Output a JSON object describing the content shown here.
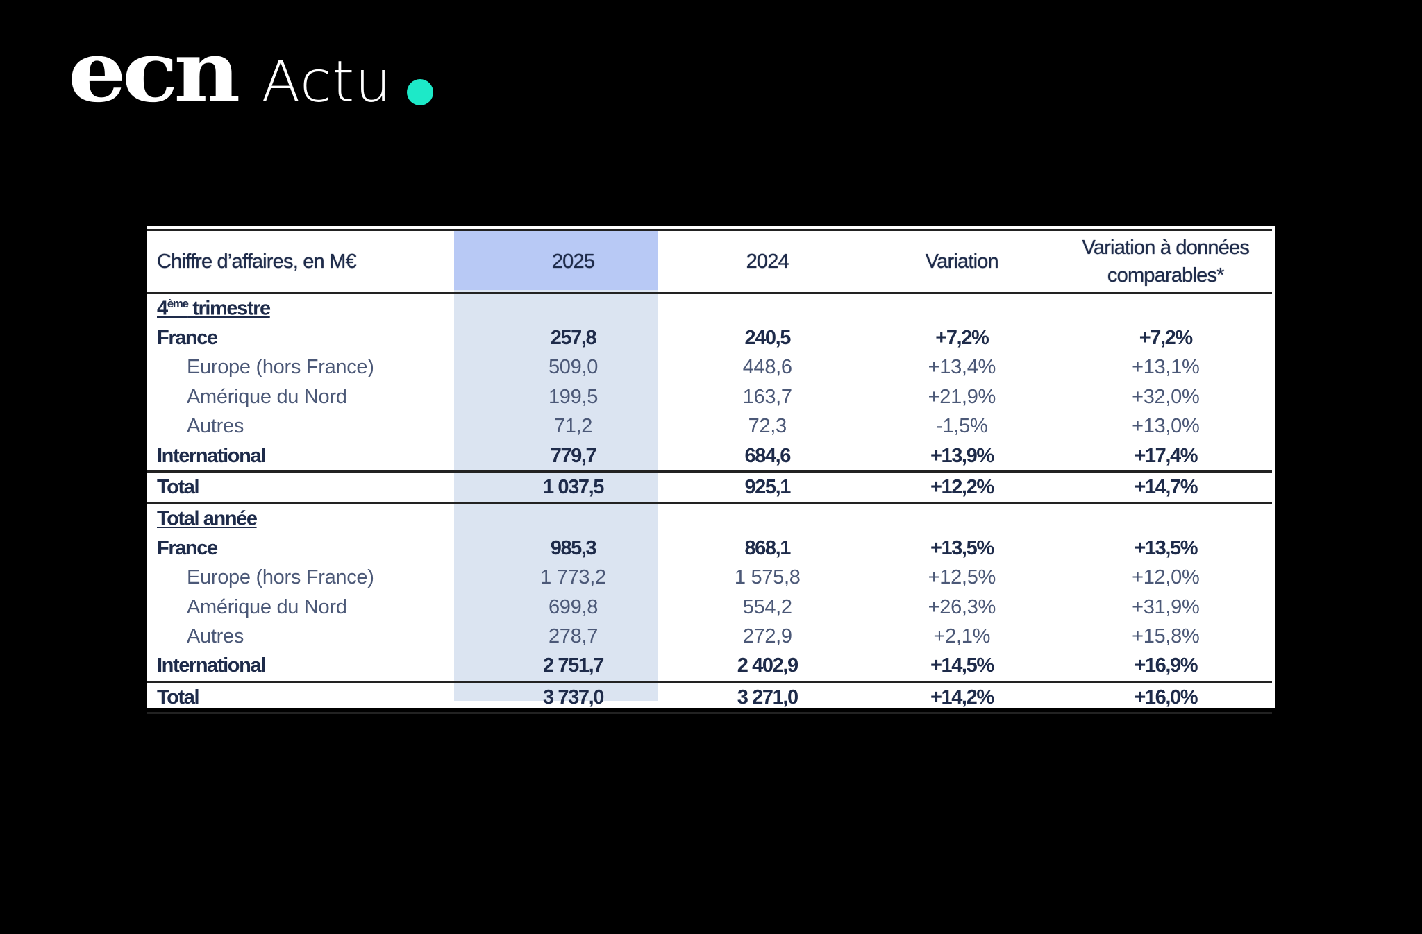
{
  "logo": {
    "brand": "ecn",
    "suffix": "Actu",
    "dot_color": "#1de9c8"
  },
  "table": {
    "headers": [
      "Chiffre d’affaires, en M€",
      "2025",
      "2024",
      "Variation",
      "Variation à données comparables*"
    ],
    "highlight_color": "#b8c9f5",
    "sections": [
      {
        "title_main": "4",
        "title_sup": "ème",
        "title_rest": " trimestre",
        "rows": [
          {
            "label": "France",
            "style": "bold",
            "values": [
              "257,8",
              "240,5",
              "+7,2%",
              "+7,2%"
            ]
          },
          {
            "label": "Europe (hors France)",
            "style": "sub",
            "values": [
              "509,0",
              "448,6",
              "+13,4%",
              "+13,1%"
            ]
          },
          {
            "label": "Amérique du Nord",
            "style": "sub",
            "values": [
              "199,5",
              "163,7",
              "+21,9%",
              "+32,0%"
            ]
          },
          {
            "label": "Autres",
            "style": "sub",
            "values": [
              "71,2",
              "72,3",
              "-1,5%",
              "+13,0%"
            ]
          },
          {
            "label": "International",
            "style": "bold",
            "values": [
              "779,7",
              "684,6",
              "+13,9%",
              "+17,4%"
            ]
          },
          {
            "label": "Total",
            "style": "total",
            "values": [
              "1 037,5",
              "925,1",
              "+12,2%",
              "+14,7%"
            ]
          }
        ]
      },
      {
        "title_main": "Total année",
        "title_sup": "",
        "title_rest": "",
        "rows": [
          {
            "label": "France",
            "style": "bold",
            "values": [
              "985,3",
              "868,1",
              "+13,5%",
              "+13,5%"
            ]
          },
          {
            "label": "Europe (hors France)",
            "style": "sub",
            "values": [
              "1 773,2",
              "1 575,8",
              "+12,5%",
              "+12,0%"
            ]
          },
          {
            "label": "Amérique du Nord",
            "style": "sub",
            "values": [
              "699,8",
              "554,2",
              "+26,3%",
              "+31,9%"
            ]
          },
          {
            "label": "Autres",
            "style": "sub",
            "values": [
              "278,7",
              "272,9",
              "+2,1%",
              "+15,8%"
            ]
          },
          {
            "label": "International",
            "style": "bold",
            "values": [
              "2 751,7",
              "2 402,9",
              "+14,5%",
              "+16,9%"
            ]
          },
          {
            "label": "Total",
            "style": "total",
            "values": [
              "3 737,0",
              "3 271,0",
              "+14,2%",
              "+16,0%"
            ]
          }
        ]
      }
    ]
  }
}
